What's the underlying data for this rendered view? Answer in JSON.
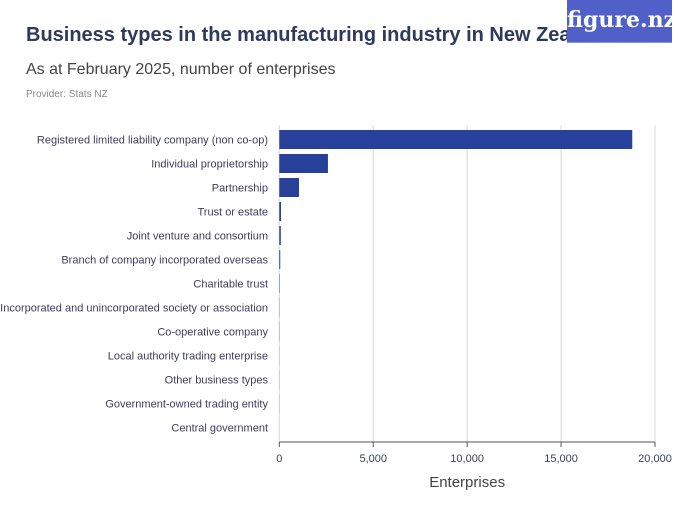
{
  "logo": "figure.nz",
  "chart_data": {
    "type": "bar",
    "orientation": "horizontal",
    "title": "Business types in the manufacturing industry in New Zealand",
    "subtitle": "As at February 2025, number of enterprises",
    "provider": "Provider: Stats NZ",
    "categories": [
      "Registered limited liability company (non co-op)",
      "Individual proprietorship",
      "Partnership",
      "Trust or estate",
      "Joint venture and consortium",
      "Branch of company incorporated overseas",
      "Charitable trust",
      "Incorporated and unincorporated society or association",
      "Co-operative company",
      "Local authority trading enterprise",
      "Other business types",
      "Government-owned trading entity",
      "Central government"
    ],
    "values": [
      18790,
      2590,
      1050,
      90,
      80,
      50,
      20,
      10,
      10,
      5,
      5,
      5,
      0
    ],
    "xlabel": "Enterprises",
    "xlim": [
      0,
      20000
    ],
    "ticks": [
      "0",
      "5,000",
      "10,000",
      "15,000",
      "20,000"
    ],
    "grid": true,
    "bar_color": "#27409a"
  }
}
